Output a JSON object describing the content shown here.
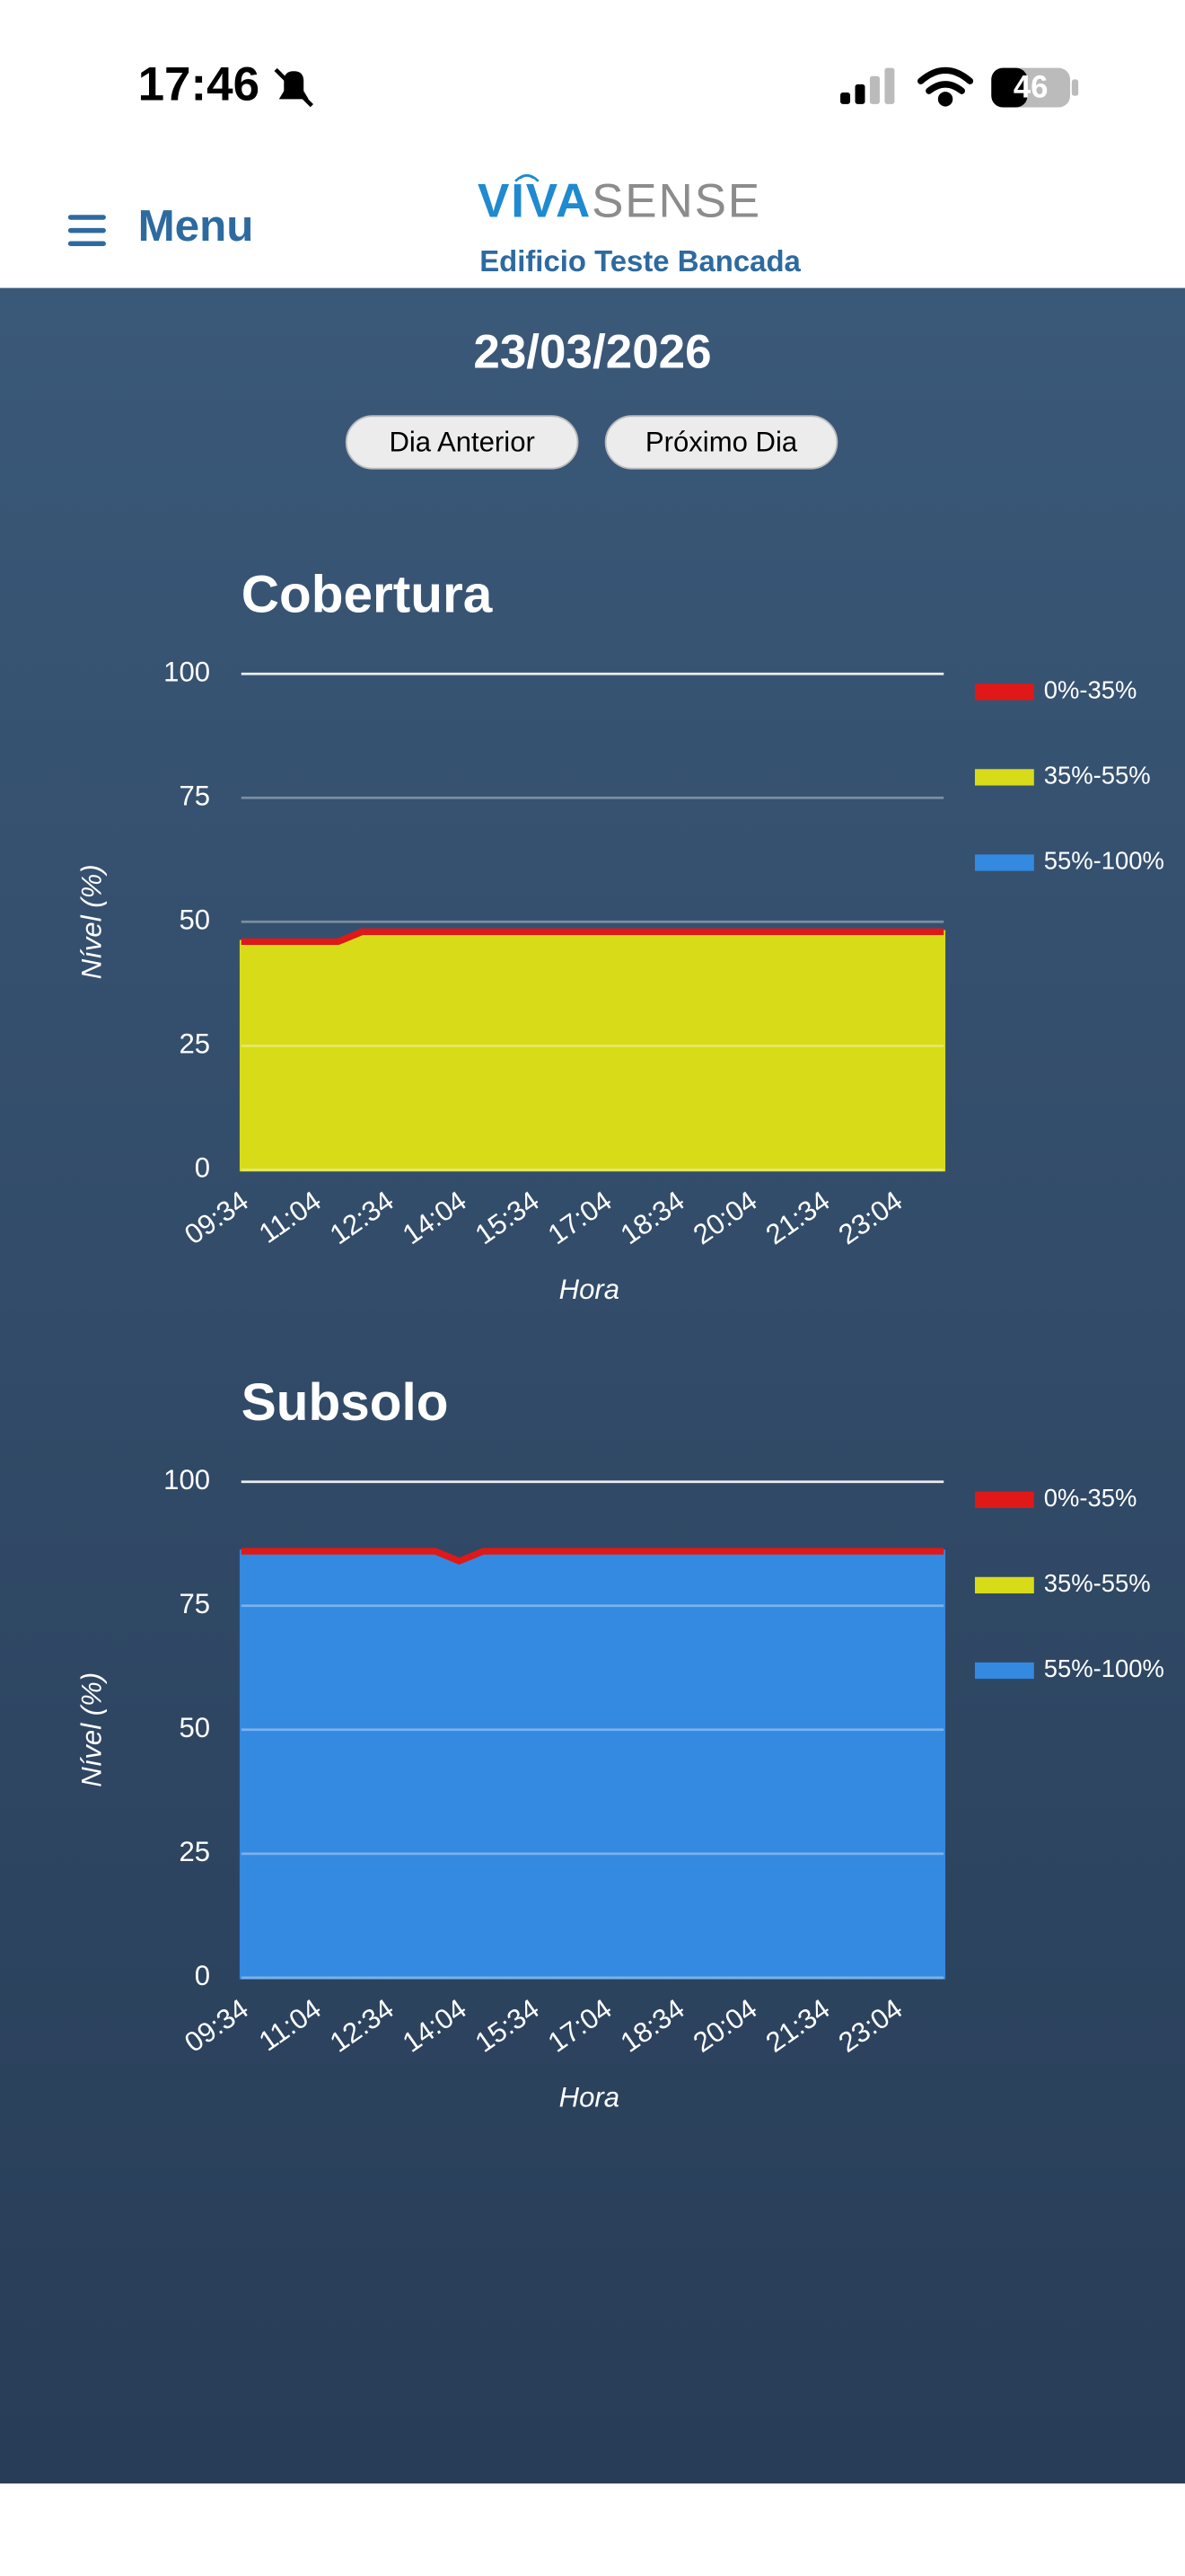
{
  "status_bar": {
    "time": "17:46",
    "battery": "46"
  },
  "header": {
    "menu": "Menu",
    "logo": [
      "VIVA",
      "SENSE"
    ],
    "subtitle": "Edificio Teste Bancada"
  },
  "date": "23/03/2026",
  "buttons": [
    "Dia Anterior",
    "Próximo Dia"
  ],
  "chart_data": [
    {
      "type": "area",
      "title": "Cobertura",
      "x_label": "Hora",
      "y_label": "Nível (%)",
      "categories": [
        "09:34",
        null,
        null,
        "11:04",
        null,
        null,
        "12:34",
        null,
        null,
        "14:04",
        null,
        null,
        "15:34",
        null,
        null,
        "17:04",
        null,
        null,
        "18:34",
        null,
        null,
        "20:04",
        null,
        null,
        "21:34",
        null,
        null,
        "23:04",
        null,
        null
      ],
      "ylim": [
        0,
        100
      ],
      "yticks": [
        0,
        25,
        50,
        75,
        100
      ],
      "grid": true,
      "legend": "right",
      "series": [
        {
          "name": "0%-35%",
          "color": "#e01818",
          "fill": false,
          "values": [
            46,
            46,
            46,
            46,
            46,
            48,
            48,
            48,
            48,
            48,
            48,
            48,
            48,
            48,
            48,
            48,
            48,
            48,
            48,
            48,
            48,
            48,
            48,
            48,
            48,
            48,
            48,
            48,
            48,
            48
          ]
        },
        {
          "name": "35%-55%",
          "color": "#d8dc18",
          "fill": true,
          "values": [
            46,
            46,
            46,
            46,
            46,
            48,
            48,
            48,
            48,
            48,
            48,
            48,
            48,
            48,
            48,
            48,
            48,
            48,
            48,
            48,
            48,
            48,
            48,
            48,
            48,
            48,
            48,
            48,
            48,
            48
          ]
        },
        {
          "name": "55%-100%",
          "color": "#3489e0",
          "fill": true,
          "values": [
            0,
            0,
            0,
            0,
            0,
            0,
            0,
            0,
            0,
            0,
            0,
            0,
            0,
            0,
            0,
            0,
            0,
            0,
            0,
            0,
            0,
            0,
            0,
            0,
            0,
            0,
            0,
            0,
            0,
            0
          ]
        }
      ]
    },
    {
      "type": "area",
      "title": "Subsolo",
      "x_label": "Hora",
      "y_label": "Nível (%)",
      "categories": [
        "09:34",
        null,
        null,
        "11:04",
        null,
        null,
        "12:34",
        null,
        null,
        "14:04",
        null,
        null,
        "15:34",
        null,
        null,
        "17:04",
        null,
        null,
        "18:34",
        null,
        null,
        "20:04",
        null,
        null,
        "21:34",
        null,
        null,
        "23:04",
        null,
        null
      ],
      "ylim": [
        0,
        100
      ],
      "yticks": [
        0,
        25,
        50,
        75,
        100
      ],
      "grid": true,
      "legend": "right",
      "series": [
        {
          "name": "0%-35%",
          "color": "#e01818",
          "fill": false,
          "values": [
            86,
            86,
            86,
            86,
            86,
            86,
            86,
            86,
            86,
            84,
            86,
            86,
            86,
            86,
            86,
            86,
            86,
            86,
            86,
            86,
            86,
            86,
            86,
            86,
            86,
            86,
            86,
            86,
            86,
            86
          ]
        },
        {
          "name": "35%-55%",
          "color": "#d8dc18",
          "fill": true,
          "values": [
            null,
            null,
            null,
            null,
            null,
            null,
            null,
            null,
            null,
            null,
            null,
            null,
            null,
            null,
            null,
            null,
            null,
            null,
            null,
            null,
            null,
            null,
            null,
            null,
            null,
            null,
            null,
            null,
            null,
            null
          ]
        },
        {
          "name": "55%-100%",
          "color": "#3489e0",
          "fill": true,
          "values": [
            86,
            86,
            86,
            86,
            86,
            86,
            86,
            86,
            86,
            84,
            86,
            86,
            86,
            86,
            86,
            86,
            86,
            86,
            86,
            86,
            86,
            86,
            86,
            86,
            86,
            86,
            86,
            86,
            86,
            86
          ]
        }
      ]
    }
  ]
}
